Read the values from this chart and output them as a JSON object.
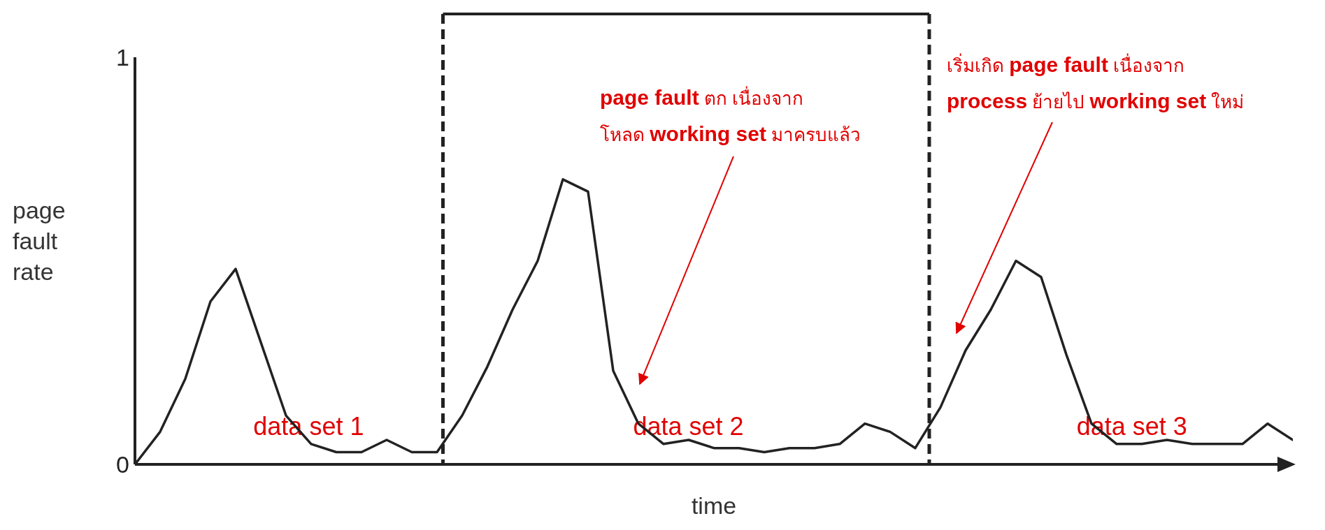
{
  "chart_data": {
    "type": "line",
    "xlabel": "time",
    "ylabel": "page fault rate",
    "tick_labels": "y",
    "ylim": [
      0,
      1
    ],
    "yticks": [
      0,
      1
    ],
    "grid": false,
    "legend": false,
    "marker": "none",
    "line_style": "solid",
    "categories": [
      null,
      null,
      null,
      null,
      null,
      null,
      null,
      null,
      null,
      null,
      null,
      null,
      null,
      null,
      null,
      null,
      null,
      null,
      null,
      null,
      null,
      null,
      null,
      null,
      null,
      null,
      null,
      null,
      null,
      null,
      null,
      null,
      null,
      null,
      null,
      null,
      null,
      null,
      null,
      null,
      null,
      null,
      null,
      null,
      null,
      null,
      null
    ],
    "series": [
      {
        "color": "#222222",
        "values": [
          0,
          0.08,
          0.21,
          0.4,
          0.48,
          0.3,
          0.12,
          0.05,
          0.03,
          0.03,
          0.06,
          0.03,
          0.03,
          0.12,
          0.24,
          0.38,
          0.5,
          0.7,
          0.67,
          0.23,
          0.1,
          0.05,
          0.06,
          0.04,
          0.04,
          0.03,
          0.04,
          0.04,
          0.05,
          0.1,
          0.08,
          0.04,
          0.14,
          0.28,
          0.38,
          0.5,
          0.46,
          0.27,
          0.1,
          0.05,
          0.05,
          0.06,
          0.05,
          0.05,
          0.05,
          0.1,
          0.06
        ]
      }
    ],
    "annotations": [
      "data set 1",
      "data set 2",
      "data set 3",
      "page fault ตก เนื่องจาก\nโหลด working set มาครบแล้ว",
      "เริ่มเกิด page fault เนื่องจาก\nprocess ย้ายไป working set ใหม่"
    ]
  }
}
